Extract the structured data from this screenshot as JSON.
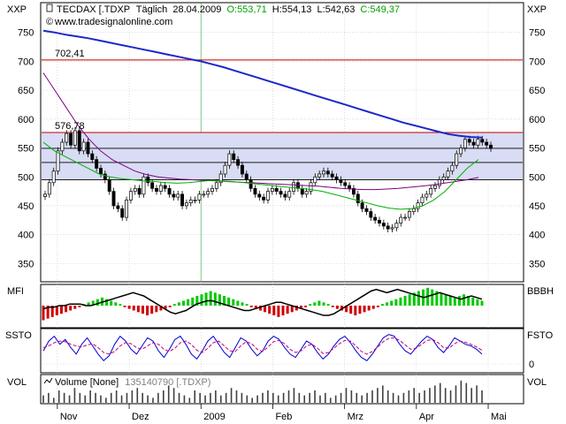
{
  "chart_data": [
    {
      "type": "candlestick",
      "panel": "price",
      "axis_label_left": "XXP",
      "axis_label_right": "XXP",
      "header": {
        "symbol": "TECDAX [.TDXP",
        "period": "Täglich",
        "date": "28.04.2009",
        "open_label": "O:553,71",
        "high_label": "H:554,13",
        "low_label": "L:542,63",
        "close_label": "C:549,37",
        "source": "www.tradesignalonline.com"
      },
      "y_ticks": [
        350,
        400,
        450,
        500,
        550,
        600,
        650,
        700,
        750
      ],
      "ylim": [
        320,
        800
      ],
      "x_labels": [
        "Nov",
        "Dez",
        "2009",
        "Feb",
        "Mrz",
        "Apr",
        "Mai"
      ],
      "annotations": [
        {
          "text": "702,41",
          "value": 702.41
        },
        {
          "text": "576,78",
          "value": 576.78
        }
      ],
      "horizontal_lines": [
        702.41,
        576.78,
        549.37,
        525,
        495
      ],
      "bands": [
        [
          525,
          576.78
        ],
        [
          495,
          525
        ]
      ],
      "close": [
        470,
        490,
        510,
        545,
        560,
        575,
        555,
        580,
        545,
        560,
        540,
        530,
        515,
        505,
        495,
        475,
        450,
        445,
        430,
        460,
        475,
        480,
        470,
        500,
        490,
        480,
        475,
        485,
        480,
        470,
        465,
        470,
        450,
        455,
        460,
        460,
        470,
        470,
        475,
        480,
        490,
        505,
        520,
        540,
        530,
        520,
        505,
        495,
        480,
        470,
        465,
        460,
        475,
        480,
        475,
        470,
        465,
        475,
        490,
        480,
        470,
        475,
        490,
        500,
        505,
        510,
        505,
        500,
        495,
        490,
        485,
        480,
        470,
        455,
        445,
        440,
        430,
        425,
        420,
        415,
        410,
        412,
        420,
        430,
        430,
        440,
        445,
        455,
        465,
        470,
        480,
        485,
        495,
        500,
        510,
        520,
        540,
        550,
        565,
        560,
        555,
        565,
        560,
        555,
        549.37
      ],
      "series": [
        {
          "name": "",
          "color": "#1c28c8",
          "values": [
            753,
            750,
            746,
            743,
            740,
            736,
            732,
            728,
            724,
            720,
            716,
            712,
            708,
            704,
            700,
            695,
            690,
            684,
            678,
            672,
            666,
            660,
            654,
            648,
            642,
            636,
            630,
            624,
            618,
            612,
            606,
            600,
            594,
            589,
            584,
            579,
            574,
            571,
            569,
            568
          ]
        },
        {
          "name": "",
          "color": "#800080",
          "values": [
            680,
            650,
            620,
            590,
            565,
            545,
            530,
            520,
            510,
            504,
            500,
            498,
            496,
            495,
            494,
            493,
            492,
            491,
            490,
            489,
            488,
            487,
            486,
            485,
            484,
            482,
            480,
            479,
            478,
            478,
            479,
            480,
            482,
            484,
            486,
            489,
            492,
            495,
            499
          ]
        },
        {
          "name": "",
          "color": "#00b000",
          "values": [
            560,
            545,
            535,
            525,
            515,
            505,
            500,
            497,
            495,
            493,
            492,
            490,
            489,
            490,
            492,
            494,
            493,
            492,
            490,
            488,
            486,
            484,
            482,
            480,
            478,
            475,
            470,
            465,
            460,
            455,
            450,
            446,
            444,
            445,
            450,
            460,
            475,
            495,
            515,
            530
          ]
        }
      ]
    },
    {
      "type": "histogram",
      "panel": "mfi",
      "axis_label_left": "MFI",
      "axis_label_right": "BBBH",
      "colors": {
        "positive": "#00c800",
        "negative": "#d00000",
        "line": "#000000"
      },
      "values": [
        -9,
        -8,
        -7,
        -6,
        -5,
        -4,
        -3,
        -2,
        -1,
        1,
        2,
        3,
        4,
        5,
        4,
        3,
        2,
        1,
        -1,
        -2,
        -3,
        -4,
        -5,
        -6,
        -5,
        -4,
        -3,
        -2,
        -1,
        1,
        2,
        3,
        4,
        5,
        6,
        7,
        8,
        9,
        8,
        7,
        6,
        5,
        4,
        3,
        2,
        1,
        -1,
        -2,
        -3,
        -4,
        -5,
        -6,
        -7,
        -6,
        -5,
        -4,
        -3,
        -2,
        -1,
        1,
        2,
        3,
        2,
        1,
        -1,
        -2,
        -3,
        -4,
        -5,
        -6,
        -5,
        -4,
        -3,
        -2,
        -1,
        1,
        2,
        3,
        4,
        5,
        6,
        7,
        8,
        9,
        10,
        11,
        10,
        9,
        8,
        7,
        6,
        5,
        6,
        7,
        6,
        5,
        4,
        3
      ],
      "line": [
        -2,
        -1,
        -1,
        0,
        0,
        1,
        1,
        1,
        0,
        0,
        1,
        2,
        3,
        4,
        5,
        6,
        7,
        8,
        7,
        6,
        4,
        2,
        0,
        -2,
        -4,
        -5,
        -4,
        -3,
        -1,
        1,
        2,
        3,
        3,
        2,
        1,
        0,
        -1,
        -2,
        -3,
        -3,
        -2,
        -1,
        0,
        1,
        2,
        2,
        1,
        0,
        -1,
        -2,
        -3,
        -4,
        -5,
        -6,
        -6,
        -5,
        -3,
        -1,
        1,
        3,
        5,
        7,
        9,
        10,
        9,
        8,
        9,
        10,
        9,
        8,
        7,
        6,
        5,
        6,
        7,
        8,
        7,
        6,
        5,
        4,
        5,
        6,
        5,
        4
      ]
    },
    {
      "type": "line",
      "panel": "stochastic",
      "axis_label_left": "SSTO",
      "axis_label_right": "FSTO",
      "y_ticks": [
        0
      ],
      "ylim": [
        0,
        100
      ],
      "series": [
        {
          "name": "",
          "color": "#0000d0",
          "values": [
            40,
            70,
            85,
            60,
            75,
            50,
            30,
            60,
            80,
            55,
            30,
            10,
            25,
            60,
            85,
            70,
            45,
            30,
            55,
            80,
            70,
            40,
            20,
            45,
            75,
            85,
            60,
            30,
            15,
            40,
            70,
            85,
            60,
            35,
            20,
            50,
            80,
            70,
            45,
            25,
            40,
            70,
            85,
            75,
            50,
            30,
            20,
            45,
            70,
            60,
            35,
            15,
            30,
            55,
            75,
            85,
            65,
            40,
            20,
            10,
            30,
            55,
            80,
            90,
            85,
            60,
            40,
            30,
            50,
            70,
            85,
            75,
            50,
            35,
            55,
            80,
            70,
            60,
            55,
            45,
            30
          ]
        },
        {
          "name": "",
          "color": "#c00080",
          "values": [
            50,
            55,
            65,
            70,
            68,
            60,
            55,
            52,
            58,
            62,
            50,
            35,
            30,
            38,
            55,
            65,
            62,
            50,
            45,
            55,
            65,
            60,
            45,
            38,
            48,
            65,
            70,
            60,
            42,
            35,
            48,
            65,
            70,
            55,
            40,
            38,
            55,
            68,
            62,
            45,
            38,
            52,
            68,
            72,
            62,
            45,
            35,
            40,
            55,
            60,
            48,
            32,
            35,
            48,
            62,
            72,
            70,
            55,
            38,
            30,
            38,
            52,
            68,
            78,
            80,
            72,
            58,
            45,
            48,
            60,
            72,
            75,
            65,
            50,
            48,
            62,
            70,
            66,
            60,
            52,
            42
          ]
        }
      ]
    },
    {
      "type": "bar",
      "panel": "volume",
      "axis_label_left": "VOL",
      "axis_label_right": "VOL",
      "legend_label": "Volume [None]",
      "value_label": "135140790 [.TDXP)",
      "values": [
        3,
        4,
        2,
        5,
        4,
        3,
        6,
        4,
        3,
        5,
        4,
        3,
        2,
        4,
        5,
        3,
        4,
        5,
        6,
        4,
        3,
        2,
        4,
        5,
        7,
        6,
        4,
        3,
        2,
        5,
        4,
        3,
        4,
        5,
        3,
        4,
        6,
        5,
        4,
        3,
        2,
        3,
        4,
        5,
        4,
        3,
        4,
        5,
        6,
        4,
        3,
        4,
        5,
        3,
        4,
        2,
        3,
        4,
        6,
        5,
        4,
        3,
        4,
        5,
        6,
        7,
        5,
        4,
        3,
        4,
        5,
        6,
        4,
        5,
        6,
        7,
        8,
        6,
        5,
        7,
        9,
        8,
        6,
        7,
        5
      ]
    }
  ]
}
